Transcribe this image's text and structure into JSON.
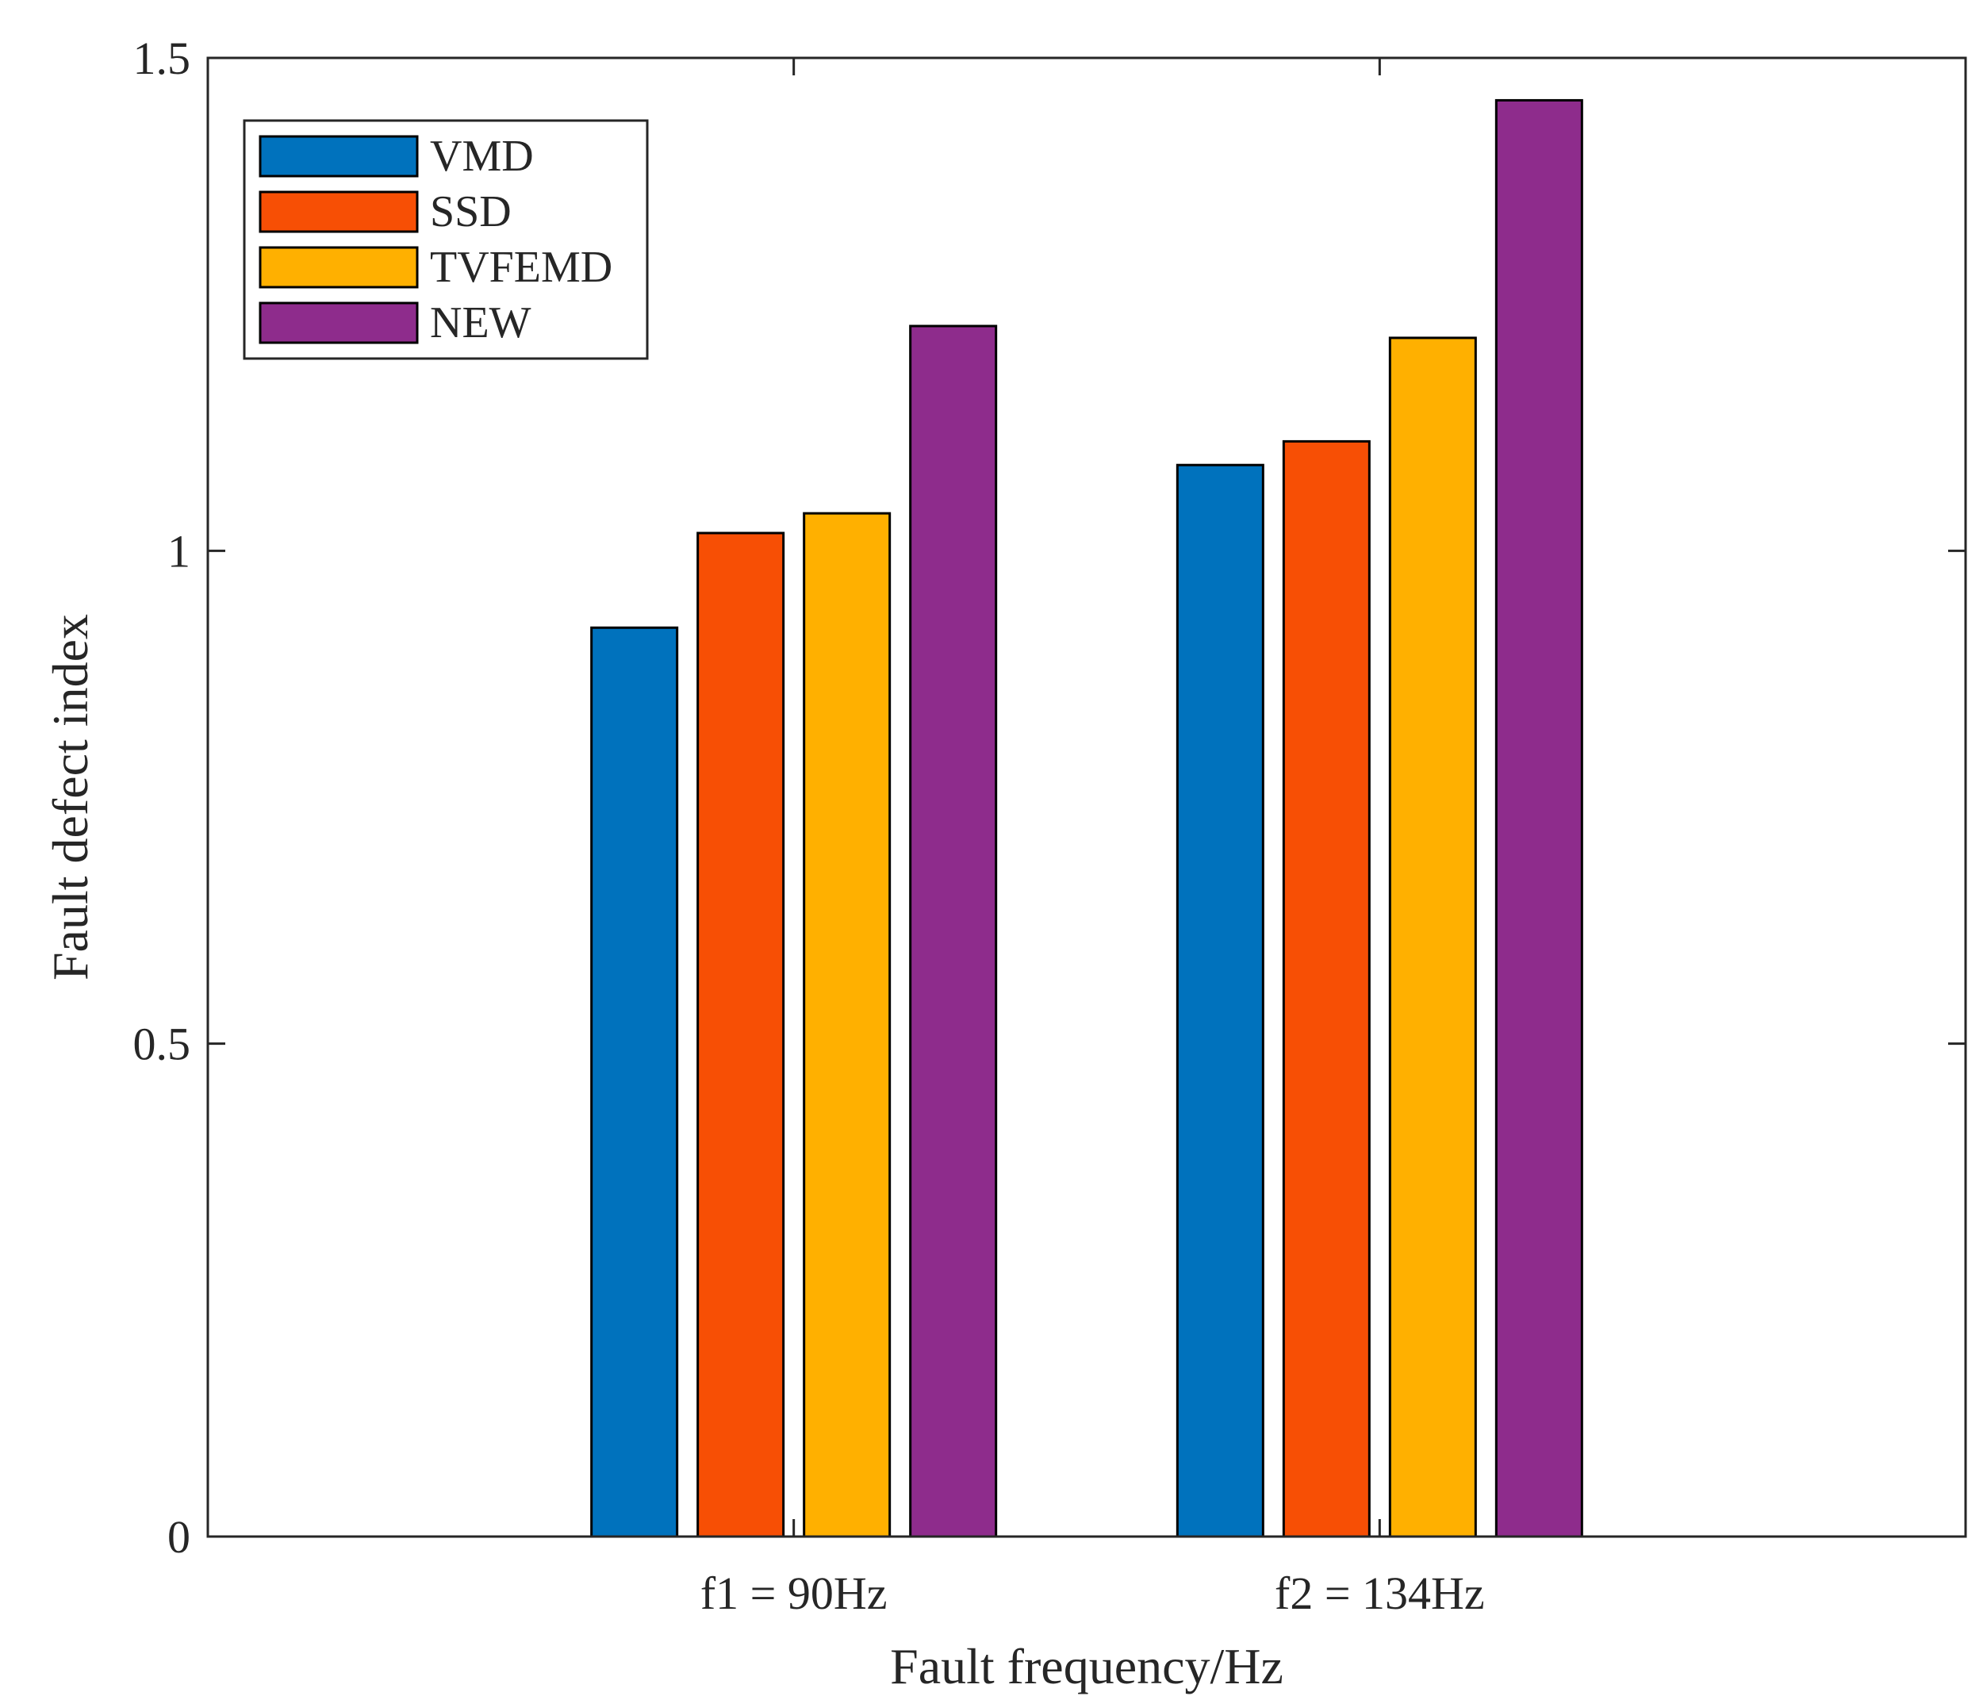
{
  "chart_data": {
    "type": "bar",
    "title": "",
    "xlabel": "Fault frequency/Hz",
    "ylabel": "Fault defect index",
    "categories": [
      "f1 = 90Hz",
      "f2 = 134Hz"
    ],
    "ylim": [
      0,
      1.5
    ],
    "yticks": [
      {
        "value": 0,
        "label": "0"
      },
      {
        "value": 0.5,
        "label": "0.5"
      },
      {
        "value": 1,
        "label": "1"
      },
      {
        "value": 1.5,
        "label": "1.5"
      }
    ],
    "grid": false,
    "legend_position": "top-left",
    "series": [
      {
        "name": "VMD",
        "color": "#0072BD",
        "values": [
          0.922,
          1.087
        ]
      },
      {
        "name": "SSD",
        "color": "#F74F05",
        "values": [
          1.018,
          1.111
        ]
      },
      {
        "name": "TVFEMD",
        "color": "#FFB000",
        "values": [
          1.038,
          1.216
        ]
      },
      {
        "name": "NEW",
        "color": "#8E2C8C",
        "values": [
          1.228,
          1.457
        ]
      }
    ]
  }
}
